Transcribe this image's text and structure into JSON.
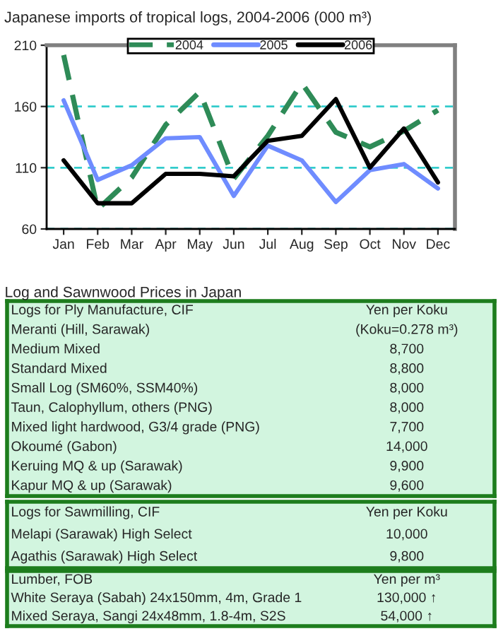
{
  "chart_data": [
    {
      "type": "line",
      "title": "Japanese imports of tropical logs, 2004-2006 (000 m³)",
      "categories": [
        "Jan",
        "Feb",
        "Mar",
        "Apr",
        "May",
        "Jun",
        "Jul",
        "Aug",
        "Sep",
        "Oct",
        "Nov",
        "Dec"
      ],
      "series": [
        {
          "name": "2004",
          "color": "#2e8b57",
          "line_style": "dashed",
          "values": [
            202,
            76,
            102,
            145,
            172,
            101,
            136,
            179,
            139,
            127,
            140,
            157
          ]
        },
        {
          "name": "2005",
          "color": "#6f8cff",
          "values": [
            165,
            100,
            112,
            134,
            135,
            87,
            128,
            116,
            82,
            108,
            113,
            93
          ]
        },
        {
          "name": "2006",
          "color": "#000000",
          "values": [
            116,
            81,
            81,
            105,
            105,
            103,
            132,
            136,
            166,
            110,
            142,
            98
          ]
        }
      ],
      "ylim": [
        60,
        210
      ],
      "yticks": [
        60,
        110,
        160,
        210
      ],
      "grid": "y",
      "legend": "top",
      "marker": "none",
      "line_style": "solid"
    },
    {
      "type": "other",
      "title": "Log and Sawnwood Prices in Japan",
      "annotations": [
        "Logs for Ply Manufacture, CIF",
        "Yen per Koku",
        "Meranti (Hill, Sarawak)",
        "(Koku=0.278 m³)",
        "Medium Mixed",
        "8,700",
        "Standard Mixed",
        "8,800",
        "Small Log (SM60%, SSM40%)",
        "8,000",
        "Taun, Calophyllum, others (PNG)",
        "8,000",
        "Mixed light hardwood, G3/4 grade (PNG)",
        "7,700",
        "Okoumé (Gabon)",
        "14,000",
        "Keruing MQ & up (Sarawak)",
        "9,900",
        "Kapur MQ & up (Sarawak)",
        "9,600"
      ]
    },
    {
      "type": "other",
      "annotations": [
        "Logs for Sawmilling, CIF",
        "Yen per Koku",
        "Melapi (Sarawak) High Select",
        "10,000",
        "Agathis (Sarawak) High Select",
        "9,800"
      ]
    },
    {
      "type": "other",
      "annotations": [
        "Lumber, FOB",
        "Yen per m³",
        "White Seraya (Sabah) 24x150mm, 4m, Grade 1",
        "130,000 ↑",
        "Mixed Seraya, Sangi 24x48mm, 1.8-4m, S2S",
        "54,000 ↑"
      ]
    }
  ]
}
